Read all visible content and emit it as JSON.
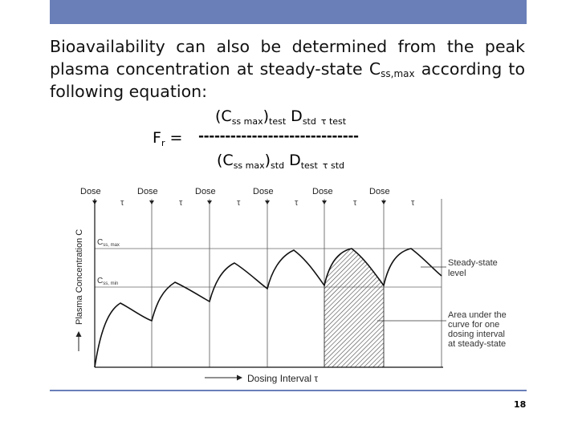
{
  "paragraph": {
    "before_sub": "Bioavailability can also be determined from the peak plasma concentration at steady-state C",
    "sub": "ss,max",
    "after_sub": " according to following equation:"
  },
  "equation": {
    "lhs_main": "F",
    "lhs_sub": "r",
    "equals": " =",
    "fraction_bar": "------------------------------",
    "num_open": "(C",
    "num_sub": "ss max",
    "num_close": ")",
    "num_test_sub": "test",
    "num_D": "D",
    "num_D_sub": "std",
    "num_tau": "τ test",
    "den_open": "(C",
    "den_sub": "ss max",
    "den_close": ")",
    "den_std_sub": "std",
    "den_D": "D",
    "den_D_sub": "test",
    "den_tau": "τ std"
  },
  "figure": {
    "dose_label": "Dose",
    "tau_symbol": "τ",
    "y_axis_label": "Plasma Concentration C",
    "x_axis_label": "Dosing Interval τ",
    "css_max_label": "C",
    "css_max_sub": "ss, max",
    "css_min_label": "C",
    "css_min_sub": "ss, min",
    "steady_state_note": [
      "Steady-state",
      "level"
    ],
    "area_note": [
      "Area under the",
      "curve for one",
      "dosing interval",
      "at steady-state"
    ]
  },
  "page_number": "18",
  "colors": {
    "header_bar": "#6a7fb8"
  }
}
